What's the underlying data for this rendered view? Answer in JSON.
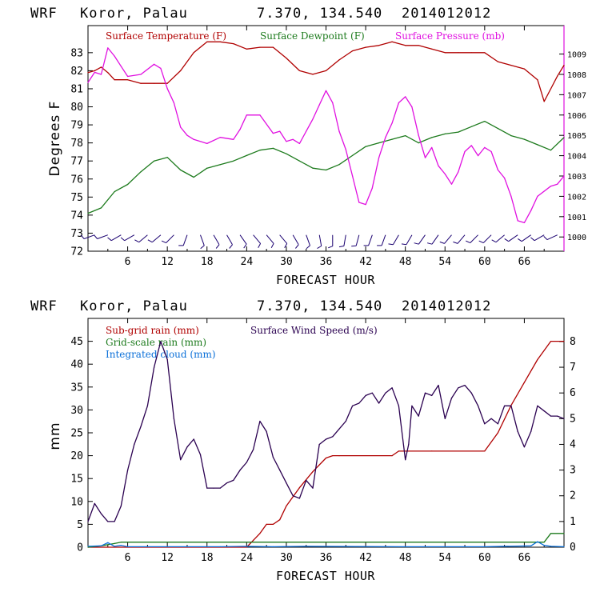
{
  "colors": {
    "temperature": "#b00000",
    "dewpoint": "#1c7a1c",
    "pressure": "#e010e0",
    "wind_barb": "#1a0070",
    "subgrid_rain": "#b00000",
    "gridscale_rain": "#1c7a1c",
    "cloud": "#0a6fd8",
    "wind_speed": "#2a0050"
  },
  "chart_data": [
    {
      "type": "line",
      "header": {
        "model": "WRF",
        "location": "Koror, Palau",
        "coords": "7.370, 134.540",
        "init": "2014012012"
      },
      "xlabel": "FORECAST HOUR",
      "ylabel": "Degrees F",
      "xlim": [
        0,
        72
      ],
      "ylim": [
        72,
        84.5
      ],
      "y2lim": [
        999.3,
        1010.4
      ],
      "x_ticks": [
        6,
        12,
        18,
        24,
        30,
        36,
        42,
        48,
        54,
        60,
        66
      ],
      "x_tick_labels": [
        "6",
        "12",
        "18",
        "24",
        "30",
        "36",
        "42",
        "48",
        "54",
        "60",
        "66"
      ],
      "y_ticks": [
        72,
        73,
        74,
        75,
        76,
        77,
        78,
        79,
        80,
        81,
        82,
        83
      ],
      "y_tick_labels": [
        "72",
        "73",
        "74",
        "75",
        "76",
        "77",
        "78",
        "79",
        "80",
        "81",
        "82",
        "83"
      ],
      "y2_ticks": [
        1000,
        1001,
        1002,
        1003,
        1004,
        1005,
        1006,
        1007,
        1008,
        1009
      ],
      "y2_tick_labels": [
        "1000",
        "1001",
        "1002",
        "1003",
        "1004",
        "1005",
        "1006",
        "1007",
        "1008",
        "1009"
      ],
      "legend": [
        "Surface Temperature (F)",
        "Surface Dewpoint (F)",
        "Surface Pressure (mb)"
      ],
      "series": [
        {
          "name": "Surface Temperature (F)",
          "axis": "left",
          "color_key": "temperature",
          "x": [
            0,
            1,
            2,
            3,
            4,
            6,
            8,
            10,
            12,
            14,
            16,
            18,
            20,
            22,
            24,
            26,
            28,
            30,
            32,
            34,
            36,
            38,
            40,
            42,
            44,
            46,
            48,
            50,
            52,
            54,
            56,
            58,
            60,
            62,
            64,
            66,
            68,
            69,
            70,
            71,
            72
          ],
          "y": [
            81.9,
            82.0,
            82.2,
            81.9,
            81.5,
            81.5,
            81.3,
            81.3,
            81.3,
            82.0,
            83.0,
            83.6,
            83.6,
            83.5,
            83.2,
            83.3,
            83.3,
            82.7,
            82.0,
            81.8,
            82.0,
            82.6,
            83.1,
            83.3,
            83.4,
            83.6,
            83.4,
            83.4,
            83.2,
            83.0,
            83.0,
            83.0,
            83.0,
            82.5,
            82.3,
            82.1,
            81.5,
            80.3,
            81.0,
            81.7,
            82.3
          ]
        },
        {
          "name": "Surface Dewpoint (F)",
          "axis": "left",
          "color_key": "dewpoint",
          "x": [
            0,
            2,
            4,
            6,
            8,
            10,
            12,
            14,
            16,
            18,
            20,
            22,
            24,
            26,
            28,
            30,
            32,
            34,
            36,
            38,
            40,
            42,
            44,
            46,
            48,
            50,
            52,
            54,
            56,
            58,
            60,
            62,
            64,
            66,
            68,
            70,
            72
          ],
          "y": [
            74.1,
            74.4,
            75.3,
            75.7,
            76.4,
            77.0,
            77.2,
            76.5,
            76.1,
            76.6,
            76.8,
            77.0,
            77.3,
            77.6,
            77.7,
            77.4,
            77.0,
            76.6,
            76.5,
            76.8,
            77.3,
            77.8,
            78.0,
            78.2,
            78.4,
            78.0,
            78.3,
            78.5,
            78.6,
            78.9,
            79.2,
            78.8,
            78.4,
            78.2,
            77.9,
            77.6,
            78.3
          ]
        },
        {
          "name": "Surface Pressure (mb)",
          "axis": "right",
          "color_key": "pressure",
          "x": [
            0,
            1,
            2,
            3,
            4,
            5,
            6,
            8,
            10,
            11,
            12,
            13,
            14,
            15,
            16,
            18,
            20,
            22,
            23,
            24,
            26,
            28,
            29,
            30,
            31,
            32,
            34,
            35,
            36,
            37,
            38,
            39,
            40,
            41,
            42,
            43,
            44,
            45,
            46,
            47,
            48,
            49,
            50,
            51,
            52,
            53,
            54,
            55,
            56,
            57,
            58,
            59,
            60,
            61,
            62,
            63,
            64,
            65,
            66,
            67,
            68,
            70,
            71,
            72
          ],
          "y": [
            1007.6,
            1008.1,
            1008.0,
            1009.3,
            1008.9,
            1008.4,
            1007.9,
            1008.0,
            1008.5,
            1008.3,
            1007.3,
            1006.6,
            1005.4,
            1005.0,
            1004.8,
            1004.6,
            1004.9,
            1004.8,
            1005.3,
            1006.0,
            1006.0,
            1005.1,
            1005.2,
            1004.7,
            1004.8,
            1004.6,
            1005.8,
            1006.5,
            1007.2,
            1006.6,
            1005.2,
            1004.3,
            1003.0,
            1001.7,
            1001.6,
            1002.4,
            1003.9,
            1004.9,
            1005.6,
            1006.6,
            1006.9,
            1006.4,
            1005.0,
            1003.9,
            1004.4,
            1003.5,
            1003.1,
            1002.6,
            1003.2,
            1004.2,
            1004.5,
            1004.0,
            1004.4,
            1004.2,
            1003.3,
            1002.9,
            1002.0,
            1000.8,
            1000.7,
            1001.3,
            1002.0,
            1002.5,
            1002.6,
            1003.0
          ]
        }
      ],
      "wind_barbs": {
        "color_key": "wind_barb",
        "y_level": 72.9,
        "x": [
          1,
          3,
          5,
          7,
          9,
          11,
          13,
          15,
          17,
          19,
          21,
          23,
          25,
          27,
          29,
          31,
          33,
          35,
          37,
          39,
          41,
          43,
          45,
          47,
          49,
          51,
          53,
          55,
          57,
          59,
          61,
          63,
          65,
          67,
          69,
          71
        ],
        "direction_deg": [
          250,
          250,
          240,
          240,
          230,
          230,
          225,
          200,
          160,
          150,
          150,
          145,
          140,
          140,
          140,
          150,
          160,
          170,
          180,
          190,
          195,
          200,
          200,
          210,
          210,
          215,
          215,
          220,
          220,
          225,
          225,
          230,
          235,
          235,
          240,
          245
        ]
      }
    },
    {
      "type": "line",
      "header": {
        "model": "WRF",
        "location": "Koror, Palau",
        "coords": "7.370, 134.540",
        "init": "2014012012"
      },
      "xlabel": "FORECAST HOUR",
      "ylabel": "mm",
      "xlim": [
        0,
        72
      ],
      "ylim": [
        0,
        50
      ],
      "y2lim": [
        0,
        8.9
      ],
      "x_ticks": [
        6,
        12,
        18,
        24,
        30,
        36,
        42,
        48,
        54,
        60,
        66
      ],
      "x_tick_labels": [
        "6",
        "12",
        "18",
        "24",
        "30",
        "36",
        "42",
        "48",
        "54",
        "60",
        "66"
      ],
      "y_ticks": [
        0,
        5,
        10,
        15,
        20,
        25,
        30,
        35,
        40,
        45
      ],
      "y_tick_labels": [
        "0",
        "5",
        "10",
        "15",
        "20",
        "25",
        "30",
        "35",
        "40",
        "45"
      ],
      "y2_ticks": [
        0,
        1,
        2,
        3,
        4,
        5,
        6,
        7,
        8
      ],
      "y2_tick_labels": [
        "0",
        "1",
        "2",
        "3",
        "4",
        "5",
        "6",
        "7",
        "8"
      ],
      "legend": [
        "Sub-grid rain (mm)",
        "Grid-scale rain (mm)",
        "Integrated cloud (mm)",
        "Surface Wind Speed (m/s)"
      ],
      "series": [
        {
          "name": "Sub-grid rain (mm)",
          "axis": "left",
          "color_key": "subgrid_rain",
          "x": [
            0,
            24,
            25,
            26,
            27,
            28,
            29,
            30,
            32,
            34,
            36,
            37,
            38,
            46,
            47,
            52,
            60,
            62,
            64,
            66,
            68,
            70,
            72
          ],
          "y": [
            0,
            0,
            1.5,
            3,
            5,
            5,
            6,
            9,
            13,
            16.5,
            19.5,
            20,
            20,
            20,
            21,
            21,
            21,
            25,
            31,
            36,
            41,
            45,
            45
          ]
        },
        {
          "name": "Grid-scale rain (mm)",
          "axis": "left",
          "color_key": "gridscale_rain",
          "x": [
            0,
            2,
            4,
            5,
            69,
            70,
            72
          ],
          "y": [
            0,
            0.3,
            0.8,
            1.1,
            1.1,
            3,
            3
          ]
        },
        {
          "name": "Integrated cloud (mm)",
          "axis": "left",
          "color_key": "cloud",
          "x": [
            0,
            2,
            3,
            4,
            5,
            6,
            20,
            24,
            28,
            33,
            48,
            60,
            67,
            68,
            69,
            70,
            72
          ],
          "y": [
            0.2,
            0.3,
            1.0,
            0.2,
            0.4,
            0.1,
            0.1,
            0.2,
            0.1,
            0.2,
            0.1,
            0.1,
            0.3,
            1.2,
            0.4,
            0.2,
            0.1
          ]
        },
        {
          "name": "Surface Wind Speed (m/s)",
          "axis": "right",
          "color_key": "wind_speed",
          "x": [
            0,
            1,
            2,
            3,
            4,
            5,
            6,
            7,
            8,
            9,
            10,
            11,
            12,
            13,
            14,
            15,
            16,
            17,
            18,
            19,
            20,
            21,
            22,
            23,
            24,
            25,
            26,
            27,
            28,
            29,
            30,
            31,
            32,
            33,
            34,
            35,
            36,
            37,
            38,
            39,
            40,
            41,
            42,
            43,
            44,
            45,
            46,
            47,
            48,
            48.5,
            49,
            50,
            51,
            52,
            53,
            54,
            55,
            56,
            57,
            58,
            59,
            60,
            61,
            62,
            63,
            64,
            65,
            66,
            67,
            68,
            69,
            70,
            71,
            72
          ],
          "y": [
            1.0,
            1.7,
            1.3,
            1.0,
            1.0,
            1.6,
            3.0,
            4.0,
            4.7,
            5.5,
            7.0,
            8.0,
            7.3,
            5.0,
            3.4,
            3.9,
            4.2,
            3.6,
            2.3,
            2.3,
            2.3,
            2.5,
            2.6,
            3.0,
            3.3,
            3.8,
            4.9,
            4.5,
            3.5,
            3.0,
            2.5,
            2.0,
            1.9,
            2.6,
            2.3,
            4.0,
            4.2,
            4.3,
            4.6,
            4.9,
            5.5,
            5.6,
            5.9,
            6.0,
            5.6,
            6.0,
            6.2,
            5.5,
            3.4,
            4.0,
            5.5,
            5.1,
            6.0,
            5.9,
            6.3,
            5.0,
            5.8,
            6.2,
            6.3,
            6.0,
            5.5,
            4.8,
            5.0,
            4.8,
            5.5,
            5.5,
            4.5,
            3.9,
            4.5,
            5.5,
            5.3,
            5.1,
            5.1,
            5.0
          ]
        }
      ]
    }
  ]
}
